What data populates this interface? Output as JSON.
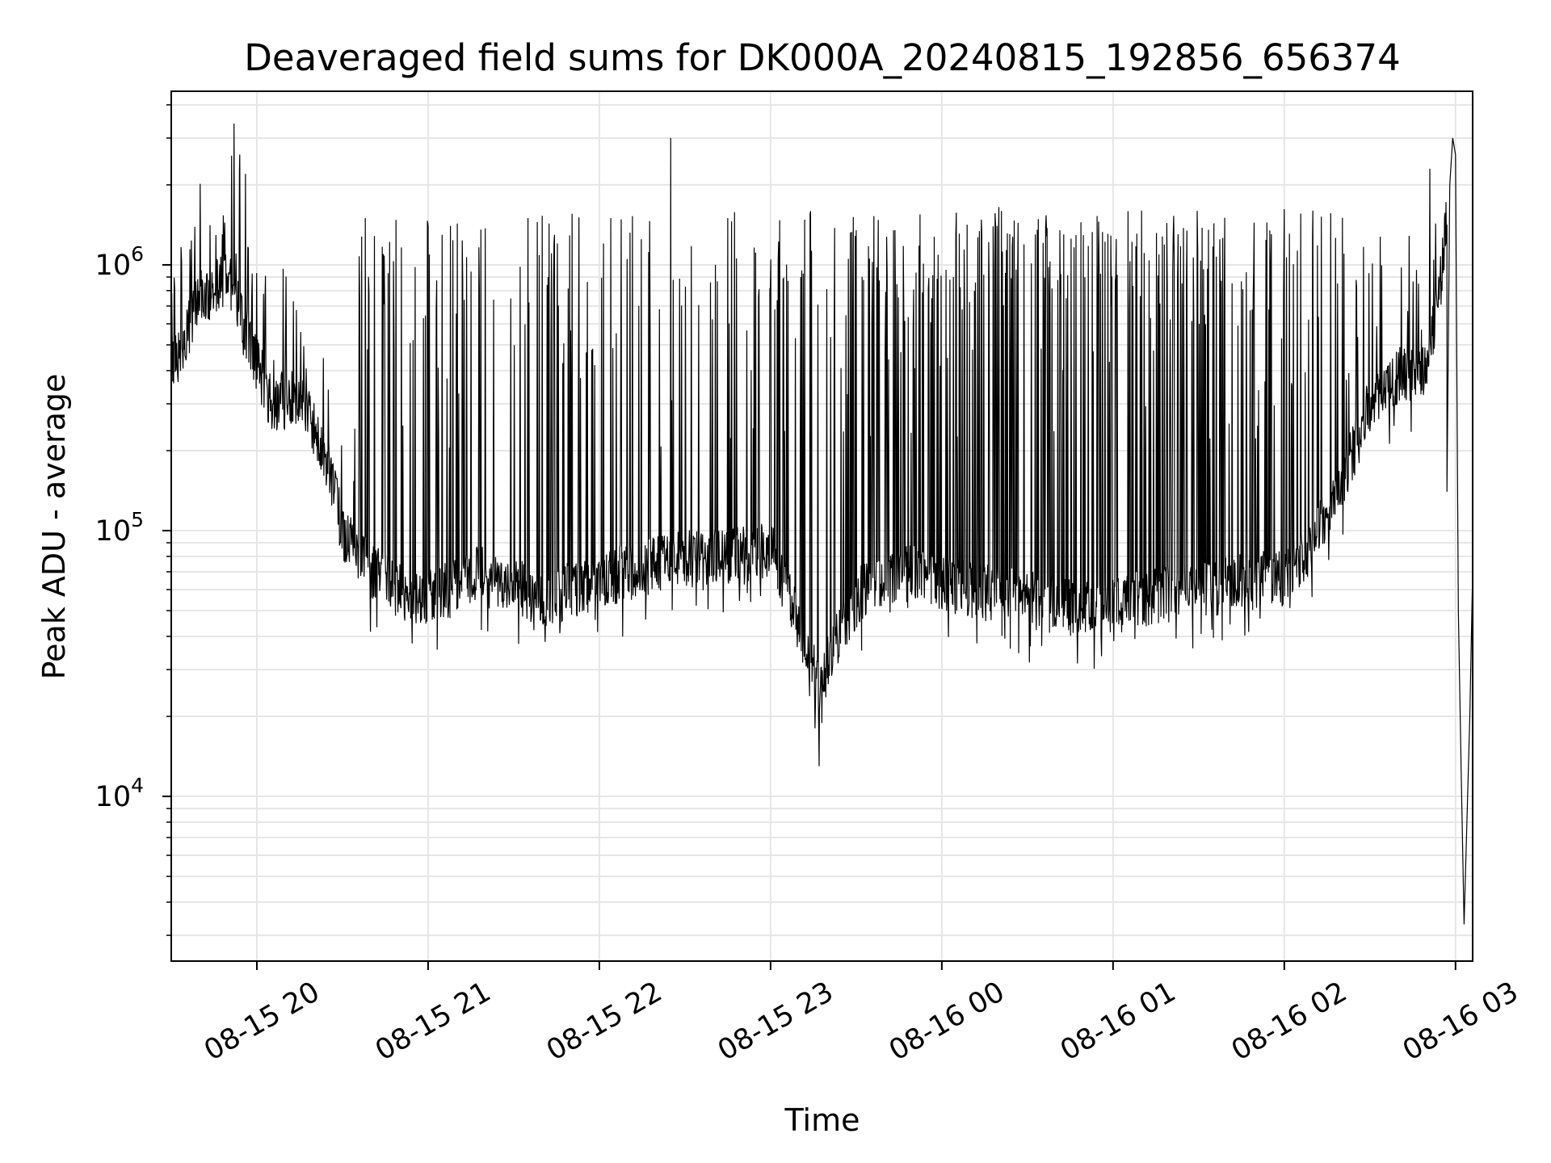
{
  "chart_data": {
    "type": "line",
    "title": "Deaveraged field sums for DK000A_20240815_192856_656374",
    "xlabel": "Time",
    "ylabel": "Peak ADU - average",
    "yscale": "log",
    "ylim": [
      2400,
      4500000
    ],
    "xlim": [
      "2024-08-15 19:30",
      "2024-08-16 03:06"
    ],
    "grid": true,
    "line_color": "#000000",
    "grid_color": "#e6e6e6",
    "x_ticks": [
      {
        "value": "2024-08-15 20:00",
        "label": "08-15 20"
      },
      {
        "value": "2024-08-15 21:00",
        "label": "08-15 21"
      },
      {
        "value": "2024-08-15 22:00",
        "label": "08-15 22"
      },
      {
        "value": "2024-08-15 23:00",
        "label": "08-15 23"
      },
      {
        "value": "2024-08-16 00:00",
        "label": "08-16 00"
      },
      {
        "value": "2024-08-16 01:00",
        "label": "08-16 01"
      },
      {
        "value": "2024-08-16 02:00",
        "label": "08-16 02"
      },
      {
        "value": "2024-08-16 03:00",
        "label": "08-16 03"
      }
    ],
    "y_ticks": [
      {
        "value": 10000,
        "base": "10",
        "exp": "4"
      },
      {
        "value": 100000,
        "base": "10",
        "exp": "5"
      },
      {
        "value": 1000000,
        "base": "10",
        "exp": "6"
      }
    ],
    "series": [
      {
        "baseline": {
          "x": [
            "2024-08-15 19:30",
            "2024-08-15 19:40",
            "2024-08-15 19:50",
            "2024-08-15 19:55",
            "2024-08-15 20:05",
            "2024-08-15 20:15",
            "2024-08-15 20:25",
            "2024-08-15 20:30",
            "2024-08-15 20:40",
            "2024-08-15 20:50",
            "2024-08-15 21:00",
            "2024-08-15 21:20",
            "2024-08-15 21:40",
            "2024-08-15 22:00",
            "2024-08-15 22:20",
            "2024-08-15 22:40",
            "2024-08-15 23:00",
            "2024-08-15 23:10",
            "2024-08-15 23:17",
            "2024-08-15 23:25",
            "2024-08-15 23:35",
            "2024-08-15 23:50",
            "2024-08-16 00:10",
            "2024-08-16 00:30",
            "2024-08-16 00:50",
            "2024-08-16 01:10",
            "2024-08-16 01:30",
            "2024-08-16 01:50",
            "2024-08-16 02:00",
            "2024-08-16 02:10",
            "2024-08-16 02:20",
            "2024-08-16 02:30",
            "2024-08-16 02:40",
            "2024-08-16 02:50",
            "2024-08-16 02:55",
            "2024-08-16 03:00"
          ],
          "y": [
            400000,
            750000,
            880000,
            600000,
            300000,
            320000,
            180000,
            100000,
            70000,
            60000,
            55000,
            70000,
            55000,
            65000,
            75000,
            80000,
            85000,
            45000,
            25000,
            45000,
            65000,
            70000,
            60000,
            55000,
            50000,
            55000,
            60000,
            65000,
            65000,
            90000,
            150000,
            300000,
            380000,
            400000,
            900000,
            3000000
          ]
        },
        "spikes": [
          {
            "x": "2024-08-15 19:52",
            "y": 3400000
          },
          {
            "x": "2024-08-15 19:54",
            "y": 2600000
          },
          {
            "x": "2024-08-15 19:56",
            "y": 2200000
          },
          {
            "x": "2024-08-15 20:38",
            "y": 1500000
          },
          {
            "x": "2024-08-15 21:00",
            "y": 1400000
          },
          {
            "x": "2024-08-15 21:35",
            "y": 1500000
          },
          {
            "x": "2024-08-15 22:04",
            "y": 1500000
          },
          {
            "x": "2024-08-15 22:25",
            "y": 3000000
          },
          {
            "x": "2024-08-15 22:45",
            "y": 1500000
          },
          {
            "x": "2024-08-15 23:30",
            "y": 1350000
          },
          {
            "x": "2024-08-16 00:20",
            "y": 1650000
          },
          {
            "x": "2024-08-16 01:10",
            "y": 1600000
          },
          {
            "x": "2024-08-16 02:00",
            "y": 1620000
          },
          {
            "x": "2024-08-16 02:10",
            "y": 1600000
          },
          {
            "x": "2024-08-16 02:51",
            "y": 2300000
          }
        ],
        "tail": {
          "x": [
            "2024-08-16 02:57",
            "2024-08-16 02:58",
            "2024-08-16 02:59",
            "2024-08-16 03:00",
            "2024-08-16 03:01",
            "2024-08-16 03:02",
            "2024-08-16 03:03",
            "2024-08-16 03:04",
            "2024-08-16 03:05",
            "2024-08-16 03:06"
          ],
          "y": [
            140000,
            2000000,
            3000000,
            2600000,
            50000,
            12000,
            3300,
            8000,
            20000,
            70000
          ]
        },
        "min_point": {
          "x": "2024-08-15 23:17",
          "y": 13000
        }
      }
    ]
  }
}
